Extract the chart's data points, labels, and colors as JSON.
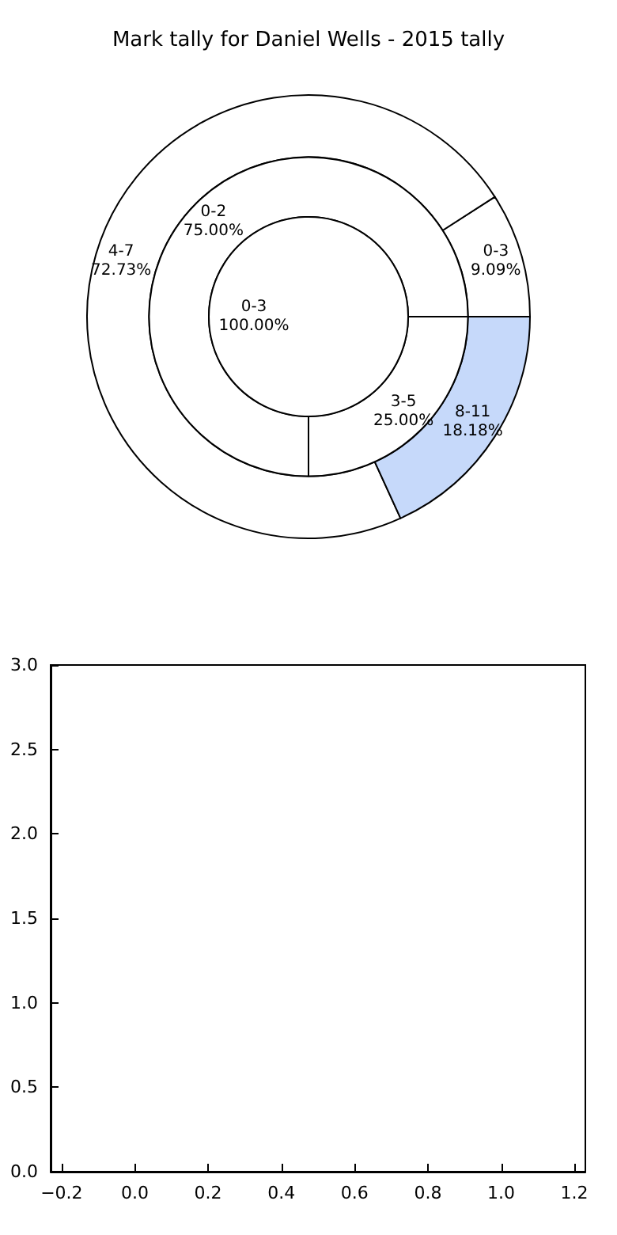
{
  "chart_data": [
    {
      "type": "donut",
      "title": "Mark tally for Daniel Wells - 2015 tally",
      "categories": [
        "0-3",
        "4-7",
        "8-11"
      ],
      "values": [
        9.09,
        72.73,
        18.18
      ],
      "value_labels": [
        "9.09%",
        "72.73%",
        "18.18%"
      ],
      "colors": [
        "#ffffff",
        "#ffffff",
        "#c6d9fa"
      ]
    },
    {
      "type": "donut",
      "categories": [
        "0-2",
        "3-5"
      ],
      "values": [
        75,
        25
      ],
      "value_labels": [
        "75.00%",
        "25.00%"
      ],
      "colors": [
        "#ffffff",
        "#ffffff"
      ]
    },
    {
      "type": "pie",
      "categories": [
        "0-3"
      ],
      "values": [
        100
      ],
      "value_labels": [
        "100.00%"
      ],
      "colors": [
        "#ffffff"
      ]
    },
    {
      "type": "scatter",
      "xlim": [
        -0.23,
        1.23
      ],
      "ylim": [
        0,
        3
      ],
      "xticks": [
        {
          "value": -0.2,
          "label": "−0.2"
        },
        {
          "value": 0,
          "label": "0.0"
        },
        {
          "value": 0.2,
          "label": "0.2"
        },
        {
          "value": 0.4,
          "label": "0.4"
        },
        {
          "value": 0.6,
          "label": "0.6"
        },
        {
          "value": 0.8,
          "label": "0.8"
        },
        {
          "value": 1,
          "label": "1.0"
        },
        {
          "value": 1.2,
          "label": "1.2"
        }
      ],
      "yticks": [
        {
          "value": 0,
          "label": "0.0"
        },
        {
          "value": 0.5,
          "label": "0.5"
        },
        {
          "value": 1,
          "label": "1.0"
        },
        {
          "value": 1.5,
          "label": "1.5"
        },
        {
          "value": 2,
          "label": "2.0"
        },
        {
          "value": 2.5,
          "label": "2.5"
        },
        {
          "value": 3,
          "label": "3.0"
        }
      ]
    }
  ]
}
